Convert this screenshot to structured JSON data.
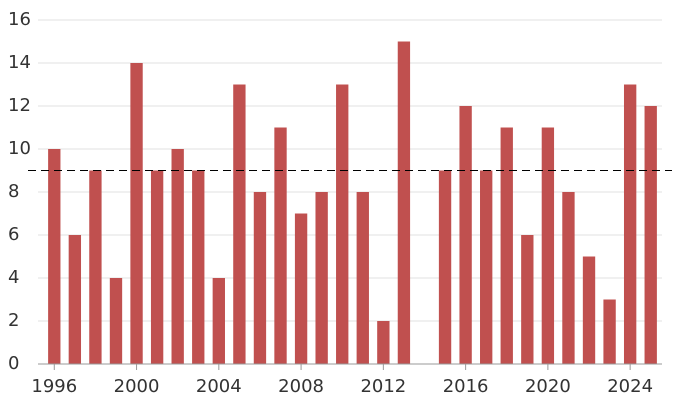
{
  "chart_data": {
    "type": "bar",
    "x": [
      1996,
      1997,
      1998,
      1999,
      2000,
      2001,
      2002,
      2003,
      2004,
      2005,
      2006,
      2007,
      2008,
      2009,
      2010,
      2011,
      2012,
      2013,
      2014,
      2015,
      2016,
      2017,
      2018,
      2019,
      2020,
      2021,
      2022,
      2023,
      2024,
      2025
    ],
    "values": [
      10,
      6,
      9,
      4,
      14,
      9,
      10,
      9,
      4,
      13,
      8,
      11,
      7,
      8,
      13,
      8,
      2,
      15,
      null,
      9,
      12,
      9,
      11,
      6,
      11,
      8,
      5,
      3,
      13,
      12
    ],
    "color": "#c0504f",
    "xlim": [
      1995.5,
      2025.5
    ],
    "xticks": [
      1996,
      2000,
      2004,
      2008,
      2012,
      2016,
      2020,
      2024
    ],
    "ylim": [
      0,
      16
    ],
    "yticks": [
      0,
      2,
      4,
      6,
      8,
      10,
      12,
      14,
      16
    ],
    "grid": true,
    "reference_line": 9
  }
}
